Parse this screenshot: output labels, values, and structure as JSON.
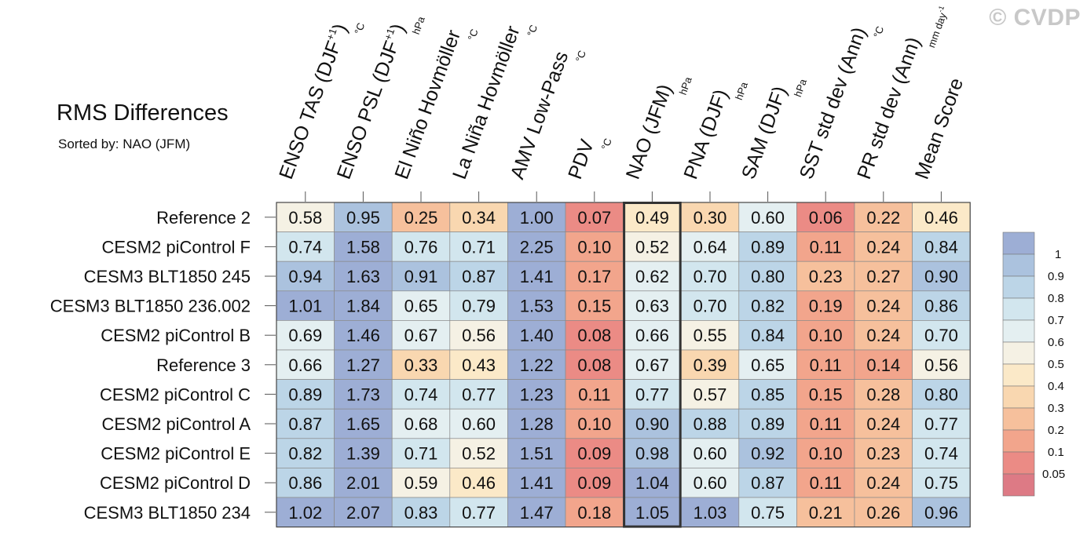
{
  "watermark": "© CVDP",
  "chart_data": {
    "type": "heatmap",
    "title": "RMS Differences",
    "subtitle": "Sorted by: NAO (JFM)",
    "columns": [
      {
        "label": "ENSO TAS (DJF",
        "sup": "+1",
        "close": ")",
        "unit": "°C"
      },
      {
        "label": "ENSO PSL (DJF",
        "sup": "+1",
        "close": ")",
        "unit": "hPa"
      },
      {
        "label": "El Niño Hovmöller",
        "sup": "",
        "close": "",
        "unit": "°C"
      },
      {
        "label": "La Niña Hovmöller",
        "sup": "",
        "close": "",
        "unit": "°C"
      },
      {
        "label": "AMV Low-Pass",
        "sup": "",
        "close": "",
        "unit": "°C"
      },
      {
        "label": "PDV",
        "sup": "",
        "close": "",
        "unit": "°C"
      },
      {
        "label": "NAO (JFM)",
        "sup": "",
        "close": "",
        "unit": "hPa"
      },
      {
        "label": "PNA (DJF)",
        "sup": "",
        "close": "",
        "unit": "hPa"
      },
      {
        "label": "SAM (DJF)",
        "sup": "",
        "close": "",
        "unit": "hPa"
      },
      {
        "label": "SST std dev (Ann)",
        "sup": "",
        "close": "",
        "unit": "°C"
      },
      {
        "label": "PR std dev (Ann)",
        "sup": "",
        "close": "",
        "unit": "mm day",
        "unit_sup": "-1"
      },
      {
        "label": "Mean Score",
        "sup": "",
        "close": "",
        "unit": ""
      }
    ],
    "sorted_column": 6,
    "rows": [
      {
        "name": "Reference 2",
        "values": [
          "0.58",
          "0.95",
          "0.25",
          "0.34",
          "1.00",
          "0.07",
          "0.49",
          "0.30",
          "0.60",
          "0.06",
          "0.22",
          "0.46"
        ]
      },
      {
        "name": "CESM2 piControl F",
        "values": [
          "0.74",
          "1.58",
          "0.76",
          "0.71",
          "2.25",
          "0.10",
          "0.52",
          "0.64",
          "0.89",
          "0.11",
          "0.24",
          "0.84"
        ]
      },
      {
        "name": "CESM3 BLT1850 245",
        "values": [
          "0.94",
          "1.63",
          "0.91",
          "0.87",
          "1.41",
          "0.17",
          "0.62",
          "0.70",
          "0.80",
          "0.23",
          "0.27",
          "0.90"
        ]
      },
      {
        "name": "CESM3 BLT1850 236.002",
        "values": [
          "1.01",
          "1.84",
          "0.65",
          "0.79",
          "1.53",
          "0.15",
          "0.63",
          "0.70",
          "0.82",
          "0.19",
          "0.24",
          "0.86"
        ]
      },
      {
        "name": "CESM2 piControl B",
        "values": [
          "0.69",
          "1.46",
          "0.67",
          "0.56",
          "1.40",
          "0.08",
          "0.66",
          "0.55",
          "0.84",
          "0.10",
          "0.24",
          "0.70"
        ]
      },
      {
        "name": "Reference 3",
        "values": [
          "0.66",
          "1.27",
          "0.33",
          "0.43",
          "1.22",
          "0.08",
          "0.67",
          "0.39",
          "0.65",
          "0.11",
          "0.14",
          "0.56"
        ]
      },
      {
        "name": "CESM2 piControl C",
        "values": [
          "0.89",
          "1.73",
          "0.74",
          "0.77",
          "1.23",
          "0.11",
          "0.77",
          "0.57",
          "0.85",
          "0.15",
          "0.28",
          "0.80"
        ]
      },
      {
        "name": "CESM2 piControl A",
        "values": [
          "0.87",
          "1.65",
          "0.68",
          "0.60",
          "1.28",
          "0.10",
          "0.90",
          "0.88",
          "0.89",
          "0.11",
          "0.24",
          "0.77"
        ]
      },
      {
        "name": "CESM2 piControl E",
        "values": [
          "0.82",
          "1.39",
          "0.71",
          "0.52",
          "1.51",
          "0.09",
          "0.98",
          "0.60",
          "0.92",
          "0.10",
          "0.23",
          "0.74"
        ]
      },
      {
        "name": "CESM2 piControl D",
        "values": [
          "0.86",
          "2.01",
          "0.59",
          "0.46",
          "1.41",
          "0.09",
          "1.04",
          "0.60",
          "0.87",
          "0.11",
          "0.24",
          "0.75"
        ]
      },
      {
        "name": "CESM3 BLT1850 234",
        "values": [
          "1.02",
          "2.07",
          "0.83",
          "0.77",
          "1.47",
          "0.18",
          "1.05",
          "1.03",
          "0.75",
          "0.21",
          "0.26",
          "0.96"
        ]
      }
    ],
    "colorbar": {
      "labels": [
        "1",
        "0.9",
        "0.8",
        "0.7",
        "0.6",
        "0.5",
        "0.4",
        "0.3",
        "0.2",
        "0.1",
        "0.05"
      ],
      "colors": [
        "#9daed5",
        "#abc2de",
        "#bcd5e7",
        "#d2e6ee",
        "#e4eff1",
        "#f5f1e4",
        "#fbe9c8",
        "#f9d7b0",
        "#f6c09c",
        "#f2a58c",
        "#eb8b85",
        "#dd7a85"
      ]
    },
    "thresholds": [
      0.05,
      0.1,
      0.2,
      0.3,
      0.4,
      0.5,
      0.6,
      0.7,
      0.8,
      0.9,
      1.0
    ]
  }
}
